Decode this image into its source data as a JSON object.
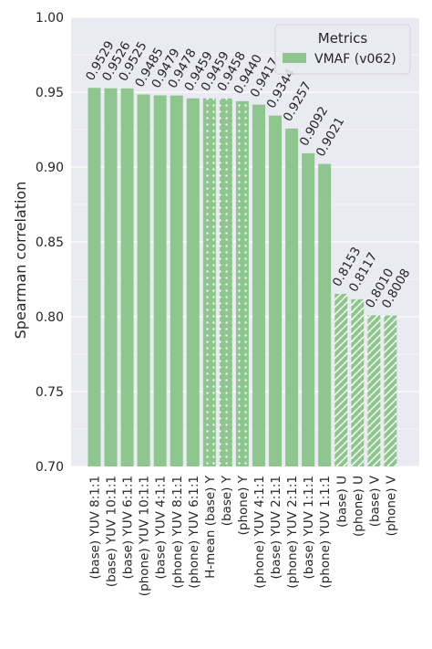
{
  "chart_data": {
    "type": "bar",
    "ylabel": "Spearman correlation",
    "xlabel": "",
    "title": "",
    "ylim": [
      0.7,
      1.0
    ],
    "yticks": [
      "0.70",
      "0.75",
      "0.80",
      "0.85",
      "0.90",
      "0.95",
      "1.00"
    ],
    "grid": true,
    "legend": {
      "title": "Metrics",
      "placement": "top-right",
      "entries": [
        "VMAF (v062)"
      ]
    },
    "bar_color": "#8fc68f",
    "background_color": "#eaeaf2",
    "categories": [
      "(base) YUV 8:1:1",
      "(base) YUV 10:1:1",
      "(base) YUV 6:1:1",
      "(phone) YUV 10:1:1",
      "(base) YUV 4:1:1",
      "(phone) YUV 8:1:1",
      "(phone) YUV 6:1:1",
      "H-mean (base) Y",
      "(base) Y",
      "(phone) Y",
      "(phone) YUV 4:1:1",
      "(base) YUV 2:1:1",
      "(phone) YUV 2:1:1",
      "(base) YUV 1:1:1",
      "(phone) YUV 1:1:1",
      "(base) U",
      "(phone) U",
      "(base) V",
      "(phone) V"
    ],
    "values": [
      0.9529,
      0.9526,
      0.9525,
      0.9485,
      0.9479,
      0.9478,
      0.9459,
      0.9459,
      0.9458,
      0.944,
      0.9417,
      0.9344,
      0.9257,
      0.9092,
      0.9021,
      0.8153,
      0.8117,
      0.801,
      0.8008
    ],
    "value_labels": [
      "0.9529",
      "0.9526",
      "0.9525",
      "0.9485",
      "0.9479",
      "0.9478",
      "0.9459",
      "0.9459",
      "0.9458",
      "0.9440",
      "0.9417",
      "0.9344",
      "0.9257",
      "0.9092",
      "0.9021",
      "0.8153",
      "0.8117",
      "0.8010",
      "0.8008"
    ],
    "patterns": [
      "solid",
      "solid",
      "solid",
      "solid",
      "solid",
      "solid",
      "solid",
      "dots",
      "dots",
      "dots",
      "solid",
      "solid",
      "solid",
      "solid",
      "solid",
      "hatch",
      "hatch",
      "hatch",
      "hatch"
    ]
  }
}
